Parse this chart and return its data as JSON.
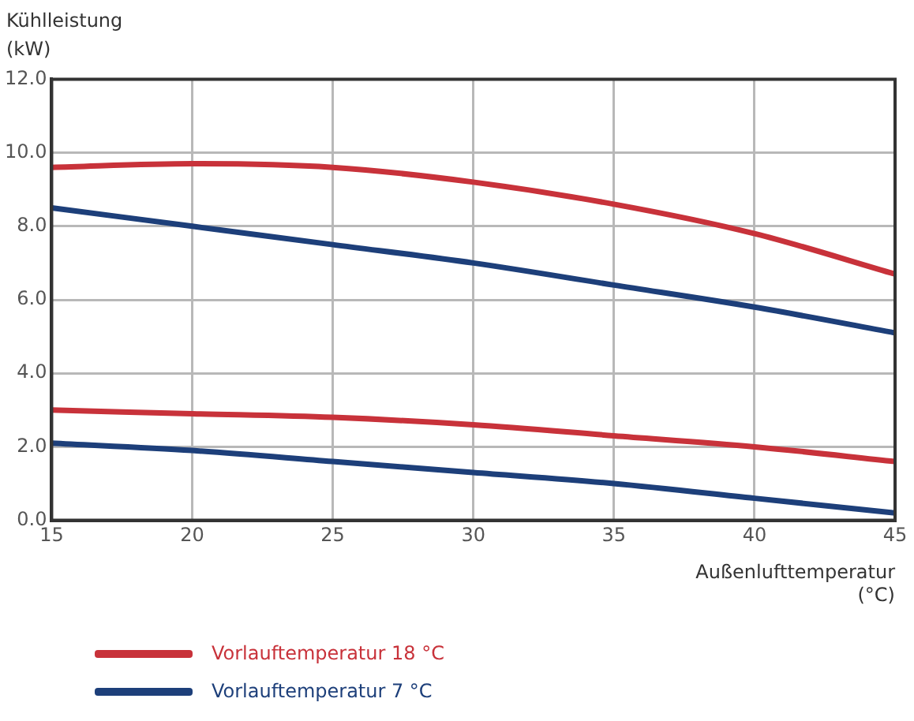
{
  "chart_data": {
    "type": "line",
    "ylabel": "Kühlleistung\n(kW)",
    "xlabel": "Außenlufttemperatur\n(°C)",
    "x": [
      15,
      20,
      25,
      30,
      35,
      40,
      45
    ],
    "series": [
      {
        "name": "Vorlauftemperatur 18 °C",
        "color": "#c8323a",
        "values": [
          9.6,
          9.7,
          9.6,
          9.2,
          8.6,
          7.8,
          6.7
        ]
      },
      {
        "name": "Vorlauftemperatur 7 °C",
        "color": "#1d3f7a",
        "values": [
          8.5,
          8.0,
          7.5,
          7.0,
          6.4,
          5.8,
          5.1
        ]
      },
      {
        "color": "#c8323a",
        "values": [
          3.0,
          2.9,
          2.8,
          2.6,
          2.3,
          2.0,
          1.6
        ]
      },
      {
        "color": "#1d3f7a",
        "values": [
          2.1,
          1.9,
          1.6,
          1.3,
          1.0,
          0.6,
          0.2
        ]
      }
    ],
    "xlim": [
      15,
      45
    ],
    "xticks": [
      15,
      20,
      25,
      30,
      35,
      40,
      45
    ],
    "ylim": [
      0,
      12
    ],
    "yticks": [
      {
        "value": 0,
        "label": "0.0"
      },
      {
        "value": 2,
        "label": "2.0"
      },
      {
        "value": 4,
        "label": "4.0"
      },
      {
        "value": 6,
        "label": "6.0"
      },
      {
        "value": 8,
        "label": "8.0"
      },
      {
        "value": 10,
        "label": "10.0"
      },
      {
        "value": 12,
        "label": "12.0"
      }
    ],
    "grid": true,
    "legend": "bottom left",
    "marker": "none",
    "line_style": "solid"
  }
}
